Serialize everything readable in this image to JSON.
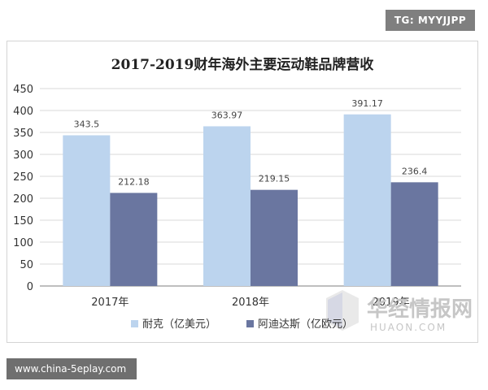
{
  "badge": {
    "text": "TG: MYYJJPP"
  },
  "footer": {
    "text": "www.china-5eplay.com"
  },
  "watermark": {
    "cn": "华经情报网",
    "en": "HUAON.COM"
  },
  "colors": {
    "series1": "#bcd4ee",
    "series2": "#6a76a0",
    "grid": "#d9d9d9",
    "axis": "#7f7f7f"
  },
  "chart_data": {
    "type": "bar",
    "title": "2017-2019财年海外主要运动鞋品牌营收",
    "categories": [
      "2017年",
      "2018年",
      "2019年"
    ],
    "series": [
      {
        "name": "耐克（亿美元）",
        "values": [
          343.5,
          363.97,
          391.17
        ],
        "labels": [
          "343.5",
          "363.97",
          "391.17"
        ]
      },
      {
        "name": "阿迪达斯（亿欧元）",
        "values": [
          212.18,
          219.15,
          236.4
        ],
        "labels": [
          "212.18",
          "219.15",
          "236.4"
        ]
      }
    ],
    "ylim": [
      0,
      450
    ],
    "yticks": [
      "0",
      "50",
      "100",
      "150",
      "200",
      "250",
      "300",
      "350",
      "400",
      "450"
    ],
    "grid": true,
    "legend": "bottom"
  }
}
